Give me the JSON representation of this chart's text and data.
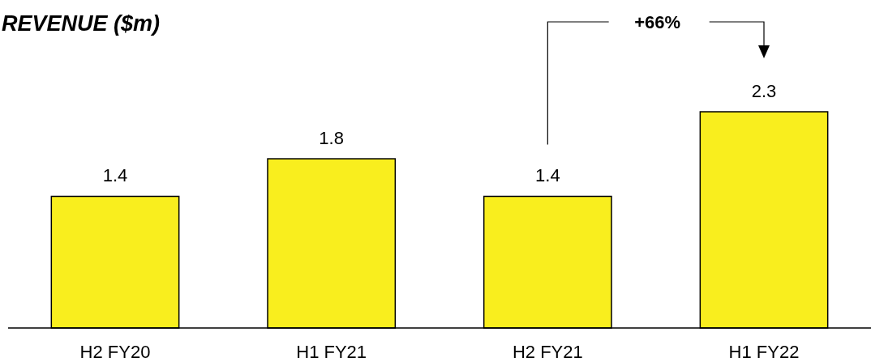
{
  "chart_data": {
    "type": "bar",
    "title": "REVENUE ($m)",
    "categories": [
      "H2 FY20",
      "H1 FY21",
      "H2 FY21",
      "H1 FY22"
    ],
    "values": [
      1.4,
      1.8,
      1.4,
      2.3
    ],
    "color": "#f9ee1e",
    "data_labels": true,
    "annotations": [
      "+66%"
    ]
  }
}
